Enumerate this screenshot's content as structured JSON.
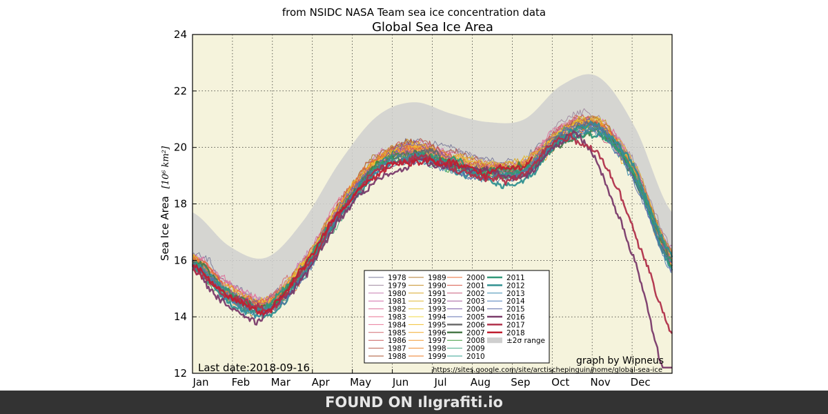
{
  "chart_data": {
    "type": "line",
    "subtitle": "from NSIDC NASA Team sea ice concentration data",
    "title": "Global Sea Ice Area",
    "ylabel": "Sea Ice Area",
    "ylabel_unit": "[10⁶ km²]",
    "ylim": [
      12,
      24
    ],
    "yticks": [
      12,
      14,
      16,
      18,
      20,
      22,
      24
    ],
    "months": [
      "Jan",
      "Feb",
      "Mar",
      "Apr",
      "May",
      "Jun",
      "Jul",
      "Aug",
      "Sep",
      "Oct",
      "Nov",
      "Dec"
    ],
    "grid": true,
    "legend_position": "lower-center",
    "band_label": "±2σ range",
    "band_color": "#cfcfcf",
    "plot_bg": "#f5f3dc",
    "last_date": "Last date:2018-09-16",
    "credit": "graph by Wipneus",
    "url": "https://sites.google.com/site/arctischepinguin/home/global-sea-ice",
    "mean_curve": [
      16.8,
      15.6,
      15.2,
      16.5,
      18.6,
      20.2,
      20.7,
      20.3,
      20.0,
      20.1,
      21.3,
      21.6,
      19.8,
      16.8
    ],
    "series": [
      {
        "name": "1978",
        "color": "#7a7a9a",
        "width": 1
      },
      {
        "name": "1979",
        "color": "#a08aa0",
        "width": 1
      },
      {
        "name": "1980",
        "color": "#c77bb0",
        "width": 1
      },
      {
        "name": "1981",
        "color": "#d26aa8",
        "width": 1
      },
      {
        "name": "1982",
        "color": "#dd6f9a",
        "width": 1
      },
      {
        "name": "1983",
        "color": "#e87092",
        "width": 1
      },
      {
        "name": "1984",
        "color": "#e8789a",
        "width": 1
      },
      {
        "name": "1985",
        "color": "#d46a70",
        "width": 1
      },
      {
        "name": "1986",
        "color": "#c95a5a",
        "width": 1
      },
      {
        "name": "1987",
        "color": "#b85a48",
        "width": 1
      },
      {
        "name": "1988",
        "color": "#a8502e",
        "width": 1
      },
      {
        "name": "1989",
        "color": "#b07a2a",
        "width": 1
      },
      {
        "name": "1990",
        "color": "#c68f28",
        "width": 1
      },
      {
        "name": "1991",
        "color": "#d8a828",
        "width": 1
      },
      {
        "name": "1992",
        "color": "#e0b830",
        "width": 1
      },
      {
        "name": "1993",
        "color": "#e8c838",
        "width": 1
      },
      {
        "name": "1994",
        "color": "#f0d840",
        "width": 1
      },
      {
        "name": "1995",
        "color": "#f2c030",
        "width": 1
      },
      {
        "name": "1996",
        "color": "#f4aa28",
        "width": 1
      },
      {
        "name": "1997",
        "color": "#f29830",
        "width": 1
      },
      {
        "name": "1998",
        "color": "#f08a28",
        "width": 1
      },
      {
        "name": "1999",
        "color": "#ee7a22",
        "width": 1
      },
      {
        "name": "2000",
        "color": "#e86a30",
        "width": 1
      },
      {
        "name": "2001",
        "color": "#d85a4a",
        "width": 1
      },
      {
        "name": "2002",
        "color": "#c85a7a",
        "width": 1
      },
      {
        "name": "2003",
        "color": "#a05a9a",
        "width": 1
      },
      {
        "name": "2004",
        "color": "#7a5aa8",
        "width": 1
      },
      {
        "name": "2005",
        "color": "#6070b0",
        "width": 1
      },
      {
        "name": "2006",
        "color": "#6a6a6a",
        "width": 2.5
      },
      {
        "name": "2007",
        "color": "#4a7a4a",
        "width": 2.5
      },
      {
        "name": "2008",
        "color": "#3a9a3a",
        "width": 1
      },
      {
        "name": "2009",
        "color": "#40a880",
        "width": 1
      },
      {
        "name": "2010",
        "color": "#30a090",
        "width": 1
      },
      {
        "name": "2011",
        "color": "#309878",
        "width": 2.5
      },
      {
        "name": "2012",
        "color": "#309090",
        "width": 2.5
      },
      {
        "name": "2013",
        "color": "#3a8ab0",
        "width": 1
      },
      {
        "name": "2014",
        "color": "#4a7ab8",
        "width": 1
      },
      {
        "name": "2015",
        "color": "#5a6aa8",
        "width": 1
      },
      {
        "name": "2016",
        "color": "#7a3a6a",
        "width": 2.5
      },
      {
        "name": "2017",
        "color": "#b0304a",
        "width": 2.5
      },
      {
        "name": "2018",
        "color": "#c01f30",
        "width": 2.5
      }
    ]
  },
  "footer": {
    "text": "FOUND ON ılıgrafiti.io"
  }
}
